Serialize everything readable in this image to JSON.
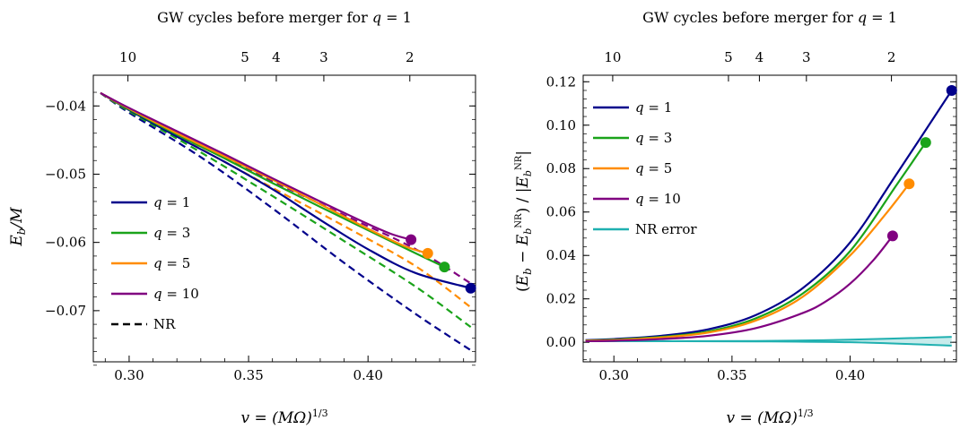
{
  "chart_data": [
    {
      "type": "line",
      "panel": "left",
      "title": "GW cycles before merger for q = 1",
      "xlabel": "v = (MΩ)^1/3",
      "ylabel": "E_b/M",
      "xlim": [
        0.285,
        0.445
      ],
      "ylim": [
        -0.0775,
        -0.0355
      ],
      "x_ticks": [
        0.3,
        0.35,
        0.4
      ],
      "x_tick_labels": [
        "0.30",
        "0.35",
        "0.40"
      ],
      "y_ticks": [
        -0.04,
        -0.05,
        -0.06,
        -0.07
      ],
      "y_tick_labels": [
        "−0.04",
        "−0.05",
        "−0.06",
        "−0.07"
      ],
      "top_axis": {
        "tick_v": [
          0.2995,
          0.3485,
          0.3616,
          0.3815,
          0.4175
        ],
        "tick_labels": [
          "10",
          "5",
          "4",
          "3",
          "2"
        ]
      },
      "legend": {
        "placement": "bottom-left",
        "entries": [
          "q = 1",
          "q = 3",
          "q = 5",
          "q = 10",
          "NR"
        ]
      },
      "series": [
        {
          "name": "q = 1",
          "style": "solid",
          "color": "#00008b",
          "x": [
            0.288,
            0.3,
            0.32,
            0.34,
            0.36,
            0.38,
            0.4,
            0.42,
            0.443
          ],
          "y": [
            -0.0381,
            -0.0406,
            -0.0445,
            -0.0482,
            -0.0522,
            -0.0567,
            -0.061,
            -0.0645,
            -0.0667
          ],
          "end_marker": [
            0.443,
            -0.0667
          ]
        },
        {
          "name": "q = 3",
          "style": "solid",
          "color": "#1aa31a",
          "x": [
            0.288,
            0.3,
            0.32,
            0.34,
            0.36,
            0.38,
            0.4,
            0.42,
            0.432
          ],
          "y": [
            -0.0381,
            -0.0405,
            -0.0442,
            -0.0477,
            -0.0513,
            -0.0548,
            -0.0582,
            -0.0616,
            -0.0636
          ],
          "end_marker": [
            0.432,
            -0.0636
          ]
        },
        {
          "name": "q = 5",
          "style": "solid",
          "color": "#ff8c00",
          "x": [
            0.288,
            0.3,
            0.32,
            0.34,
            0.36,
            0.38,
            0.4,
            0.415,
            0.425
          ],
          "y": [
            -0.0381,
            -0.0404,
            -0.044,
            -0.0474,
            -0.0508,
            -0.0544,
            -0.058,
            -0.0605,
            -0.0616
          ],
          "end_marker": [
            0.425,
            -0.0616
          ]
        },
        {
          "name": "q = 10",
          "style": "solid",
          "color": "#800080",
          "x": [
            0.288,
            0.3,
            0.32,
            0.34,
            0.36,
            0.38,
            0.4,
            0.41,
            0.418
          ],
          "y": [
            -0.0381,
            -0.0403,
            -0.0437,
            -0.0471,
            -0.0506,
            -0.054,
            -0.0573,
            -0.0588,
            -0.0596
          ],
          "end_marker": [
            0.418,
            -0.0596
          ]
        },
        {
          "name": "NR q = 1",
          "style": "dashed",
          "color": "#00008b",
          "x": [
            0.288,
            0.3,
            0.33,
            0.36,
            0.39,
            0.42,
            0.443
          ],
          "y": [
            -0.0381,
            -0.041,
            -0.0475,
            -0.055,
            -0.063,
            -0.0705,
            -0.0758
          ]
        },
        {
          "name": "NR q = 3",
          "style": "dashed",
          "color": "#1aa31a",
          "x": [
            0.288,
            0.3,
            0.33,
            0.36,
            0.39,
            0.42,
            0.443
          ],
          "y": [
            -0.0381,
            -0.0408,
            -0.0468,
            -0.0532,
            -0.0598,
            -0.0665,
            -0.0724
          ]
        },
        {
          "name": "NR q = 5",
          "style": "dashed",
          "color": "#ff8c00",
          "x": [
            0.288,
            0.3,
            0.33,
            0.36,
            0.39,
            0.42,
            0.443
          ],
          "y": [
            -0.0381,
            -0.0406,
            -0.0463,
            -0.052,
            -0.0576,
            -0.0635,
            -0.0695
          ]
        },
        {
          "name": "NR q = 10",
          "style": "dashed",
          "color": "#800080",
          "x": [
            0.288,
            0.3,
            0.33,
            0.36,
            0.39,
            0.42,
            0.443
          ],
          "y": [
            -0.0381,
            -0.0404,
            -0.0457,
            -0.051,
            -0.056,
            -0.061,
            -0.066
          ]
        }
      ]
    },
    {
      "type": "line",
      "panel": "right",
      "title": "GW cycles before merger for q = 1",
      "xlabel": "v = (MΩ)^1/3",
      "ylabel": "(E_b − E_b^NR) / |E_b^NR|",
      "xlim": [
        0.287,
        0.445
      ],
      "ylim": [
        -0.009,
        0.123
      ],
      "x_ticks": [
        0.3,
        0.35,
        0.4
      ],
      "x_tick_labels": [
        "0.30",
        "0.35",
        "0.40"
      ],
      "y_ticks": [
        0.0,
        0.02,
        0.04,
        0.06,
        0.08,
        0.1,
        0.12
      ],
      "y_tick_labels": [
        "0.00",
        "0.02",
        "0.04",
        "0.06",
        "0.08",
        "0.10",
        "0.12"
      ],
      "top_axis": {
        "tick_v": [
          0.2995,
          0.3485,
          0.3616,
          0.3815,
          0.4175
        ],
        "tick_labels": [
          "10",
          "5",
          "4",
          "3",
          "2"
        ]
      },
      "legend": {
        "placement": "top-left",
        "entries": [
          "q = 1",
          "q = 3",
          "q = 5",
          "q = 10",
          "NR error"
        ]
      },
      "series": [
        {
          "name": "q = 1",
          "style": "solid",
          "color": "#00008b",
          "x": [
            0.288,
            0.3,
            0.32,
            0.34,
            0.36,
            0.38,
            0.4,
            0.42,
            0.443
          ],
          "y": [
            0.001,
            0.0015,
            0.003,
            0.006,
            0.0125,
            0.025,
            0.046,
            0.078,
            0.116
          ],
          "end_marker": [
            0.443,
            0.116
          ]
        },
        {
          "name": "q = 3",
          "style": "solid",
          "color": "#1aa31a",
          "x": [
            0.288,
            0.3,
            0.32,
            0.34,
            0.36,
            0.38,
            0.4,
            0.42,
            0.432
          ],
          "y": [
            0.0008,
            0.0012,
            0.0025,
            0.005,
            0.011,
            0.0225,
            0.042,
            0.073,
            0.092
          ],
          "end_marker": [
            0.432,
            0.092
          ]
        },
        {
          "name": "q = 5",
          "style": "solid",
          "color": "#ff8c00",
          "x": [
            0.288,
            0.3,
            0.32,
            0.34,
            0.36,
            0.38,
            0.4,
            0.415,
            0.425
          ],
          "y": [
            0.0007,
            0.001,
            0.0022,
            0.0045,
            0.01,
            0.021,
            0.04,
            0.059,
            0.073
          ],
          "end_marker": [
            0.425,
            0.073
          ]
        },
        {
          "name": "q = 10",
          "style": "solid",
          "color": "#800080",
          "x": [
            0.288,
            0.3,
            0.32,
            0.34,
            0.36,
            0.38,
            0.39,
            0.4,
            0.41,
            0.418
          ],
          "y": [
            0.0005,
            0.0007,
            0.0015,
            0.003,
            0.0065,
            0.0135,
            0.019,
            0.027,
            0.038,
            0.049
          ],
          "end_marker": [
            0.418,
            0.049
          ]
        },
        {
          "name": "NR error",
          "style": "band",
          "color": "#1fb0b0",
          "x": [
            0.288,
            0.36,
            0.4,
            0.443
          ],
          "y_upper": [
            0.0005,
            0.0006,
            0.0012,
            0.0025
          ],
          "y_lower": [
            0.0005,
            0.0004,
            0.0,
            -0.0015
          ]
        }
      ]
    }
  ]
}
